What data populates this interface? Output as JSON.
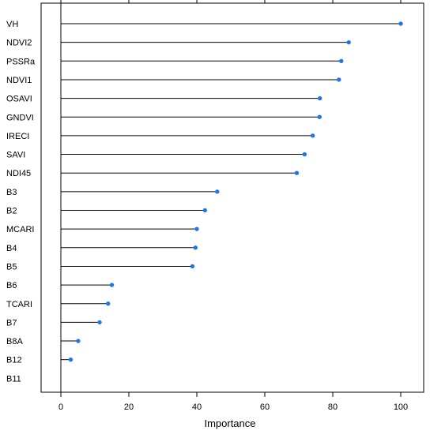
{
  "chart_data": {
    "type": "dot",
    "title": "",
    "xlabel": "Importance",
    "ylabel": "",
    "xlim": [
      0,
      100
    ],
    "x_ticks": [
      0,
      20,
      40,
      60,
      80,
      100
    ],
    "grid": false,
    "categories": [
      "VH",
      "NDVI2",
      "PSSRa",
      "NDVI1",
      "OSAVI",
      "GNDVI",
      "IRECI",
      "SAVI",
      "NDI45",
      "B3",
      "B2",
      "MCARI",
      "B4",
      "B5",
      "B6",
      "TCARI",
      "B7",
      "B8A",
      "B12",
      "B11"
    ],
    "values": [
      100,
      84.7,
      82.5,
      81.8,
      76.2,
      76.1,
      74.1,
      71.7,
      69.4,
      46.0,
      42.4,
      40.0,
      39.6,
      38.7,
      15.0,
      13.9,
      11.4,
      5.1,
      2.9,
      0
    ],
    "point_color": "#1f78e6",
    "line_color": "#000000"
  }
}
